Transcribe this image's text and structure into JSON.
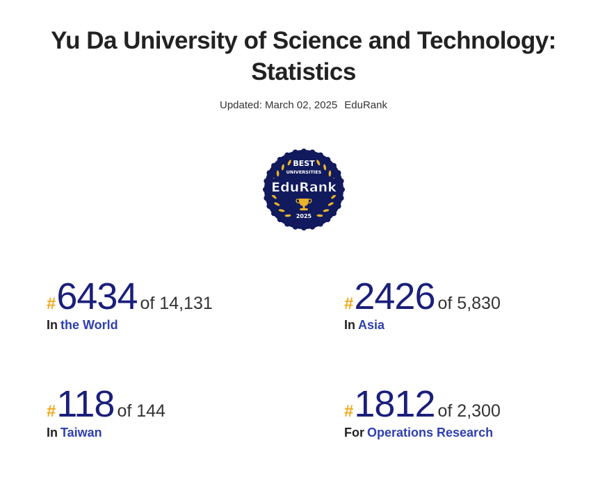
{
  "header": {
    "title_line1": "Yu Da University of Science and Technology:",
    "title_line2": "Statistics",
    "updated": "Updated: March 02, 2025",
    "source": "EduRank"
  },
  "badge": {
    "top_text": "BEST",
    "sub_text": "UNIVERSITIES",
    "brand": "EduRank",
    "year": "2025",
    "colors": {
      "background": "#101a5c",
      "gold": "#e8b22a",
      "text": "#ffffff"
    }
  },
  "stats": {
    "world": {
      "hash": "#",
      "rank": "6434",
      "of": "of 14,131",
      "prefix": "In",
      "scope": "the World"
    },
    "asia": {
      "hash": "#",
      "rank": "2426",
      "of": "of 5,830",
      "prefix": "In",
      "scope": "Asia"
    },
    "country": {
      "hash": "#",
      "rank": "118",
      "of": "of 144",
      "prefix": "In",
      "scope": "Taiwan"
    },
    "subject": {
      "hash": "#",
      "rank": "1812",
      "of": "of 2,300",
      "prefix": "For",
      "scope": "Operations Research"
    }
  },
  "colors": {
    "rank_number": "#1a1f7a",
    "hash": "#f0a81c",
    "link": "#2f3fb0"
  }
}
